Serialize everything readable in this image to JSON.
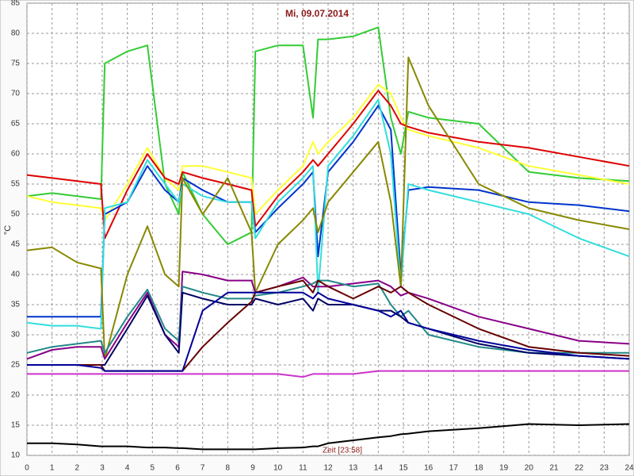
{
  "chart_data": {
    "type": "line",
    "title": "Mi, 09.07.2014",
    "ylabel": "°C",
    "xlabel": "Zeit [23:58]",
    "x": [
      0,
      1,
      2,
      2.95,
      3.1,
      4,
      4.8,
      5.5,
      6.05,
      6.2,
      7,
      8,
      8.95,
      9.1,
      10,
      11,
      11.4,
      11.6,
      12,
      13,
      14,
      14.5,
      14.9,
      15.2,
      16,
      18,
      20,
      22,
      24
    ],
    "xlim": [
      0,
      24
    ],
    "xticks": [
      0,
      1,
      2,
      3,
      4,
      5,
      6,
      7,
      8,
      9,
      10,
      11,
      12,
      13,
      14,
      15,
      16,
      17,
      18,
      19,
      20,
      21,
      22,
      23,
      24
    ],
    "ylim": [
      10,
      85
    ],
    "yticks": [
      10,
      15,
      20,
      25,
      30,
      35,
      40,
      45,
      50,
      55,
      60,
      65,
      70,
      75,
      80,
      85
    ],
    "grid": true,
    "series": [
      {
        "color": "#33cc33",
        "values": [
          53,
          53.5,
          53,
          52.5,
          75,
          77,
          78,
          55,
          50,
          57,
          50,
          45,
          47,
          77,
          78,
          78,
          66,
          79,
          79,
          79.5,
          81,
          66,
          60,
          67,
          66,
          65,
          57,
          56,
          55.5
        ]
      },
      {
        "color": "#ffff33",
        "values": [
          53,
          52,
          51.5,
          51,
          49,
          55,
          61,
          56,
          54,
          58,
          58,
          57,
          56,
          50,
          54,
          58,
          62,
          60,
          62,
          66,
          71.5,
          70,
          66,
          64,
          63,
          61,
          58,
          56.5,
          55
        ]
      },
      {
        "color": "#dd0000",
        "values": [
          56.5,
          56,
          55.5,
          55,
          46,
          54,
          60,
          56,
          55,
          57,
          56,
          55,
          54,
          48,
          53,
          57,
          59,
          58,
          60,
          65,
          70.5,
          68,
          65,
          64.5,
          63.5,
          62,
          61,
          59.5,
          58
        ]
      },
      {
        "color": "#0033cc",
        "values": [
          33,
          33,
          33,
          33,
          50,
          52,
          58,
          54,
          52,
          56,
          54,
          52,
          52,
          47,
          51,
          55,
          57,
          43,
          57,
          62,
          68,
          64,
          40,
          54,
          54.5,
          54,
          52,
          51.5,
          50.5
        ]
      },
      {
        "color": "#33dddd",
        "values": [
          32,
          31.5,
          31.5,
          31,
          51,
          52,
          59,
          55,
          52,
          55,
          53,
          52,
          52,
          46,
          52,
          56,
          58,
          37,
          58,
          63,
          69,
          60,
          38,
          55,
          54,
          52,
          50,
          46,
          43
        ]
      },
      {
        "color": "#888800",
        "values": [
          44,
          44.5,
          42,
          41,
          26,
          40,
          48,
          40,
          38,
          56,
          50,
          56,
          47,
          37,
          45,
          49,
          51,
          47,
          52,
          57,
          62,
          52,
          38,
          76,
          68,
          55,
          51,
          49,
          47.5
        ]
      },
      {
        "color": "#880088",
        "values": [
          26,
          27.5,
          28,
          28,
          26,
          32,
          37,
          30,
          28,
          40.5,
          40,
          39,
          39,
          37,
          38,
          39.5,
          38,
          38,
          38,
          38.5,
          39,
          38,
          36.5,
          37,
          36,
          33,
          31,
          29,
          28.5
        ]
      },
      {
        "color": "#228888",
        "values": [
          27,
          28,
          28.5,
          29,
          27,
          33,
          37.5,
          31,
          29,
          38,
          37,
          36,
          36,
          36.5,
          37,
          38,
          38.5,
          39,
          39,
          38,
          38.5,
          35,
          33,
          34,
          30,
          28,
          27,
          27,
          27
        ]
      },
      {
        "color": "#000066",
        "values": [
          25,
          25,
          25,
          25,
          25,
          31,
          36.5,
          30,
          27,
          37,
          36,
          35,
          35,
          36,
          35,
          36,
          34,
          36,
          35,
          35,
          34,
          34,
          33,
          32,
          31,
          28.5,
          27,
          26.5,
          26
        ]
      },
      {
        "color": "#660000",
        "values": [
          25,
          25,
          25,
          25,
          24,
          24,
          24,
          24,
          24,
          24,
          28,
          32,
          35.5,
          37,
          38,
          39,
          37,
          39,
          38,
          36,
          38,
          37,
          38,
          37,
          35,
          31,
          28,
          27,
          26.5
        ]
      },
      {
        "color": "#000099",
        "values": [
          25,
          25,
          25,
          24.5,
          24,
          24,
          24,
          24,
          24,
          24,
          34,
          37,
          37,
          37,
          37,
          37,
          36,
          37,
          36,
          35,
          34,
          33,
          34,
          32,
          31,
          29,
          27.5,
          26.5,
          26
        ]
      },
      {
        "color": "#cc33cc",
        "values": [
          23.5,
          23.5,
          23.5,
          23.5,
          23.5,
          23.5,
          23.5,
          23.5,
          23.5,
          23.5,
          23.5,
          23.5,
          23.5,
          23.5,
          23.5,
          23,
          23.5,
          23.5,
          23.5,
          23.5,
          24,
          24,
          24,
          24,
          24,
          24,
          24,
          24,
          24
        ]
      },
      {
        "color": "#000000",
        "values": [
          12,
          12,
          11.8,
          11.5,
          11.5,
          11.5,
          11.3,
          11.3,
          11.2,
          11.2,
          11,
          11,
          11,
          11,
          11.2,
          11.3,
          11.5,
          11.5,
          12,
          12.5,
          13,
          13.2,
          13.5,
          13.6,
          14,
          14.5,
          15.2,
          15,
          15.2
        ]
      }
    ]
  }
}
